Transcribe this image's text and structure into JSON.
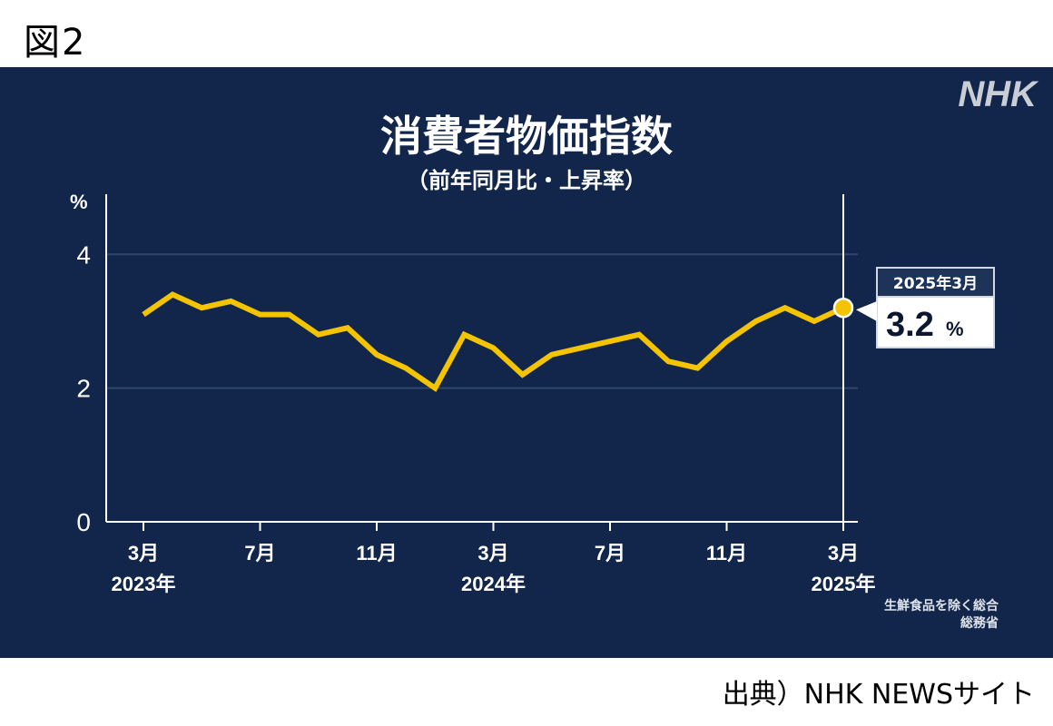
{
  "figure_label": "図2",
  "source_credit": "出典）NHK NEWSサイト",
  "logo_text": "NHK",
  "colors": {
    "panel_bg": "#11264a",
    "line": "#f5c400",
    "grid": "#2e4668",
    "axis": "#ffffff"
  },
  "chart_data": {
    "type": "line",
    "title": "消費者物価指数",
    "subtitle": "（前年同月比・上昇率）",
    "ylabel": "%",
    "ylim": [
      0,
      4.9
    ],
    "y_ticks": [
      {
        "value": 0,
        "label": "0"
      },
      {
        "value": 2,
        "label": "2"
      },
      {
        "value": 4,
        "label": "4"
      }
    ],
    "grid": "horizontal at 2 and 4",
    "x_ticks": [
      {
        "index": 0,
        "month": "3月",
        "year": "2023年"
      },
      {
        "index": 4,
        "month": "7月",
        "year": ""
      },
      {
        "index": 8,
        "month": "11月",
        "year": ""
      },
      {
        "index": 12,
        "month": "3月",
        "year": "2024年"
      },
      {
        "index": 16,
        "month": "7月",
        "year": ""
      },
      {
        "index": 20,
        "month": "11月",
        "year": ""
      },
      {
        "index": 24,
        "month": "3月",
        "year": "2025年"
      }
    ],
    "series": [
      {
        "values": [
          3.1,
          3.4,
          3.2,
          3.3,
          3.1,
          3.1,
          2.8,
          2.9,
          2.5,
          2.3,
          2.0,
          2.8,
          2.6,
          2.2,
          2.5,
          2.6,
          2.7,
          2.8,
          2.4,
          2.3,
          2.7,
          3.0,
          3.2,
          3.0,
          3.2
        ]
      }
    ],
    "callout": {
      "date": "2025年3月",
      "value": "3.2",
      "unit": "%"
    },
    "notes": [
      "生鮮食品を除く総合",
      "総務省"
    ]
  }
}
